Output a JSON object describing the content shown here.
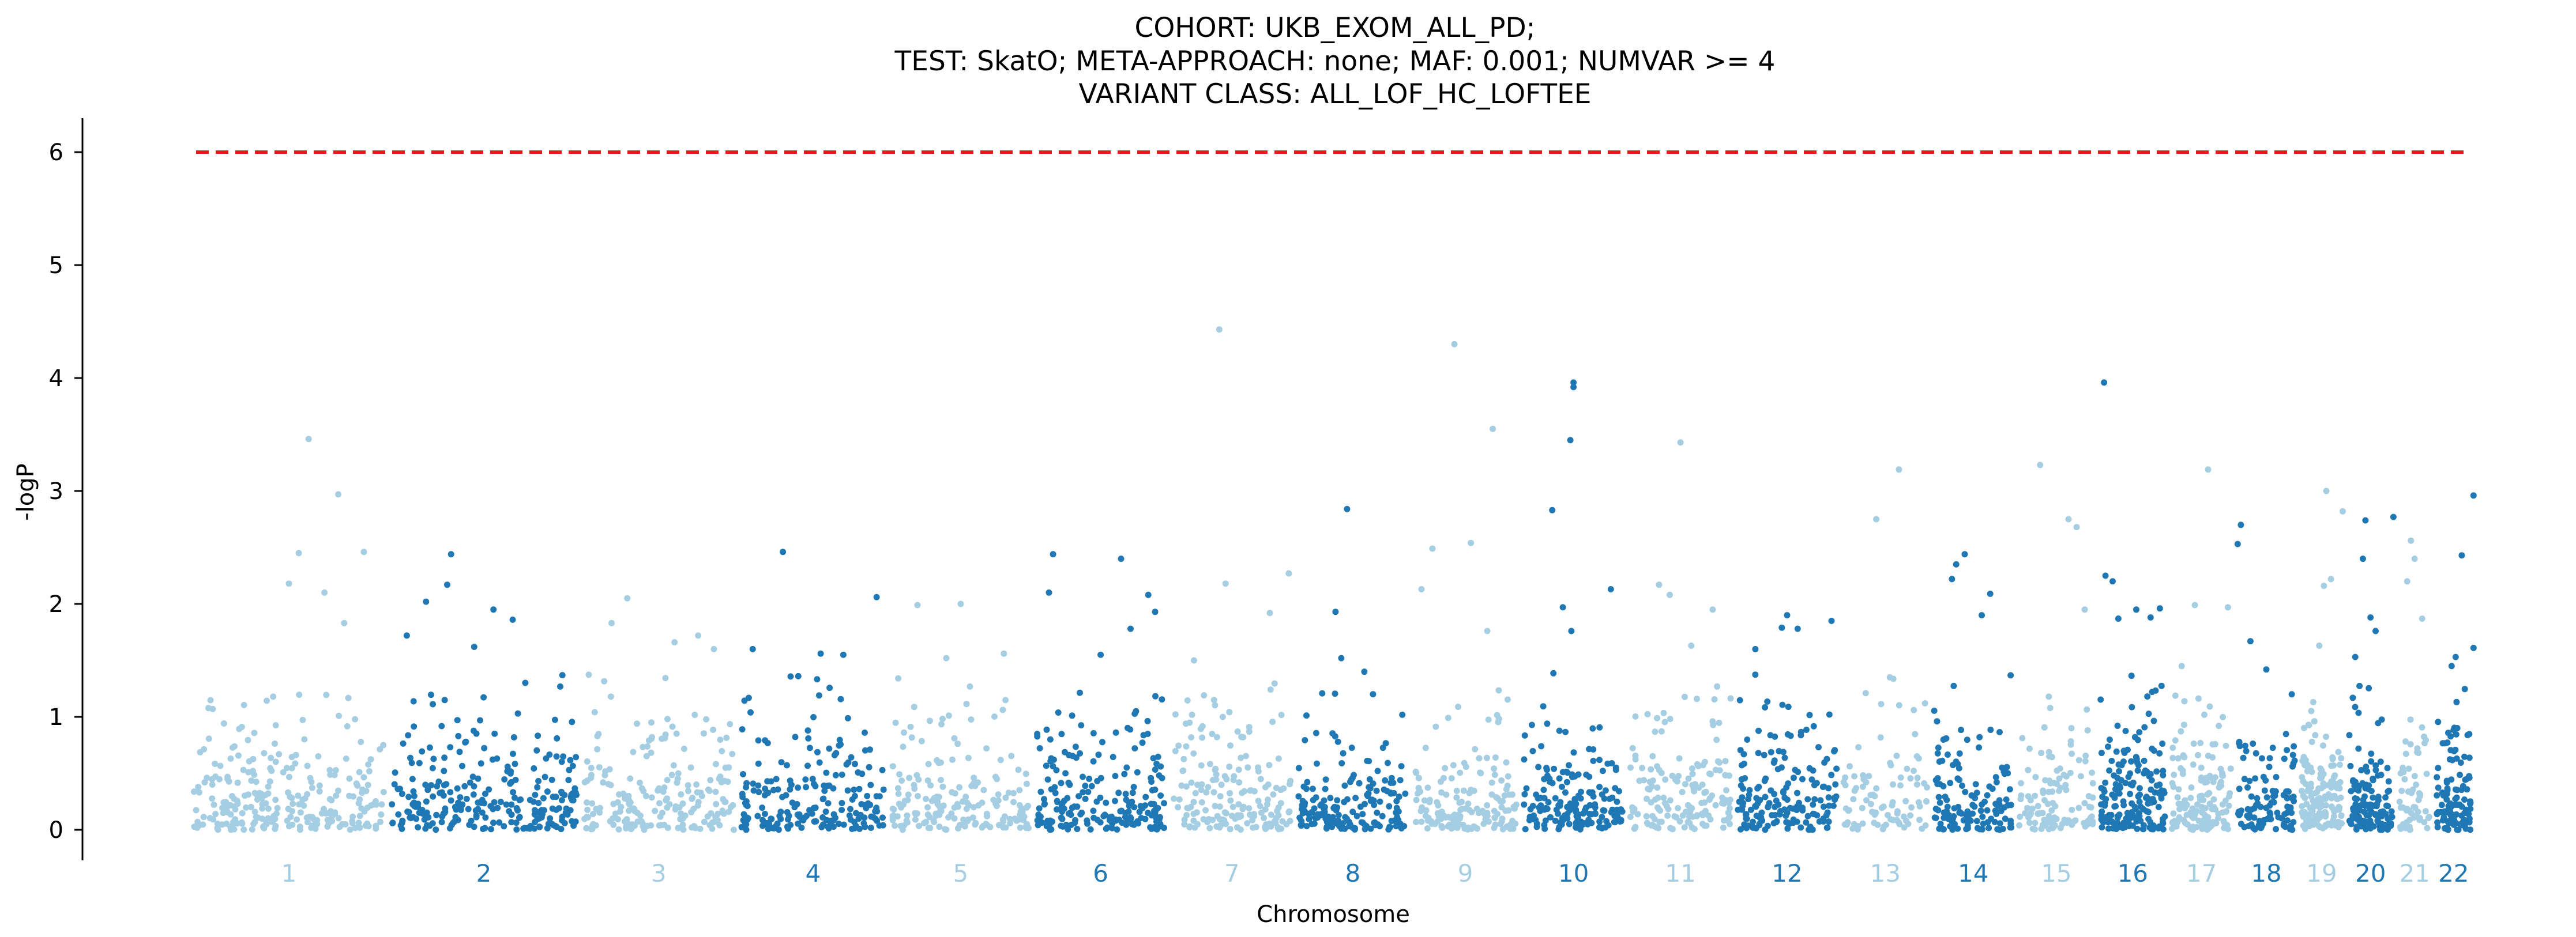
{
  "chart_data": {
    "type": "scatter",
    "title_lines": [
      "COHORT: UKB_EXOM_ALL_PD;",
      "TEST: SkatO; META-APPROACH: none; MAF: 0.001; NUMVAR >= 4",
      "VARIANT CLASS: ALL_LOF_HC_LOFTEE"
    ],
    "xlabel": "Chromosome",
    "ylabel": "-logP",
    "ylim": [
      -0.3,
      6.3
    ],
    "yticks": [
      0,
      1,
      2,
      3,
      4,
      5,
      6
    ],
    "threshold": 6,
    "grid": false,
    "legend": "none",
    "colors": {
      "light": "#a6cee3",
      "dark": "#1f78b4",
      "threshold": "#e31a1c"
    },
    "chromosomes": [
      {
        "label": "1",
        "length": 248,
        "points": 260,
        "max_points": [
          [
            0.6,
            3.46
          ],
          [
            0.75,
            2.97
          ],
          [
            0.55,
            2.45
          ],
          [
            0.5,
            2.18
          ],
          [
            0.88,
            2.46
          ],
          [
            0.68,
            2.1
          ],
          [
            0.78,
            1.83
          ]
        ]
      },
      {
        "label": "2",
        "length": 242,
        "points": 260,
        "max_points": [
          [
            0.33,
            2.44
          ],
          [
            0.31,
            2.17
          ],
          [
            0.55,
            1.95
          ],
          [
            0.65,
            1.86
          ],
          [
            0.1,
            1.72
          ],
          [
            0.2,
            2.02
          ],
          [
            0.45,
            1.62
          ]
        ]
      },
      {
        "label": "3",
        "length": 198,
        "points": 200,
        "max_points": [
          [
            0.3,
            2.05
          ],
          [
            0.2,
            1.83
          ],
          [
            0.6,
            1.66
          ],
          [
            0.75,
            1.72
          ],
          [
            0.85,
            1.6
          ]
        ]
      },
      {
        "label": "4",
        "length": 190,
        "points": 200,
        "max_points": [
          [
            0.3,
            2.46
          ],
          [
            0.92,
            2.06
          ],
          [
            0.1,
            1.6
          ],
          [
            0.55,
            1.56
          ],
          [
            0.7,
            1.55
          ]
        ]
      },
      {
        "label": "5",
        "length": 181,
        "points": 180,
        "max_points": [
          [
            0.2,
            1.99
          ],
          [
            0.5,
            2.0
          ],
          [
            0.4,
            1.52
          ],
          [
            0.8,
            1.56
          ]
        ]
      },
      {
        "label": "6",
        "length": 171,
        "points": 200,
        "max_points": [
          [
            0.15,
            2.44
          ],
          [
            0.12,
            2.1
          ],
          [
            0.65,
            2.4
          ],
          [
            0.85,
            2.08
          ],
          [
            0.9,
            1.93
          ],
          [
            0.72,
            1.78
          ],
          [
            0.5,
            1.55
          ]
        ]
      },
      {
        "label": "7",
        "length": 159,
        "points": 170,
        "max_points": [
          [
            0.4,
            4.43
          ],
          [
            0.45,
            2.18
          ],
          [
            0.8,
            1.92
          ],
          [
            0.95,
            2.27
          ],
          [
            0.2,
            1.5
          ]
        ]
      },
      {
        "label": "8",
        "length": 145,
        "points": 170,
        "max_points": [
          [
            0.45,
            2.84
          ],
          [
            0.35,
            1.93
          ],
          [
            0.4,
            1.52
          ],
          [
            0.6,
            1.4
          ]
        ]
      },
      {
        "label": "9",
        "length": 138,
        "points": 150,
        "max_points": [
          [
            0.4,
            4.3
          ],
          [
            0.75,
            3.55
          ],
          [
            0.1,
            2.13
          ],
          [
            0.2,
            2.49
          ],
          [
            0.55,
            2.54
          ],
          [
            0.7,
            1.76
          ]
        ]
      },
      {
        "label": "10",
        "length": 134,
        "points": 170,
        "max_points": [
          [
            0.5,
            3.96
          ],
          [
            0.5,
            3.92
          ],
          [
            0.47,
            3.45
          ],
          [
            0.3,
            2.83
          ],
          [
            0.85,
            2.13
          ],
          [
            0.4,
            1.97
          ],
          [
            0.48,
            1.76
          ]
        ]
      },
      {
        "label": "11",
        "length": 135,
        "points": 150,
        "max_points": [
          [
            0.5,
            3.43
          ],
          [
            0.3,
            2.17
          ],
          [
            0.4,
            2.08
          ],
          [
            0.8,
            1.95
          ],
          [
            0.6,
            1.63
          ]
        ]
      },
      {
        "label": "12",
        "length": 133,
        "points": 170,
        "max_points": [
          [
            0.5,
            1.9
          ],
          [
            0.6,
            1.78
          ],
          [
            0.92,
            1.85
          ],
          [
            0.2,
            1.6
          ],
          [
            0.45,
            1.79
          ]
        ]
      },
      {
        "label": "13",
        "length": 114,
        "points": 90,
        "max_points": [
          [
            0.4,
            2.75
          ],
          [
            0.65,
            3.19
          ],
          [
            0.55,
            1.35
          ]
        ]
      },
      {
        "label": "14",
        "length": 107,
        "points": 130,
        "max_points": [
          [
            0.4,
            2.44
          ],
          [
            0.3,
            2.35
          ],
          [
            0.25,
            2.22
          ],
          [
            0.7,
            2.09
          ],
          [
            0.6,
            1.9
          ]
        ]
      },
      {
        "label": "15",
        "length": 102,
        "points": 110,
        "max_points": [
          [
            0.3,
            3.23
          ],
          [
            0.65,
            2.75
          ],
          [
            0.75,
            2.68
          ],
          [
            0.85,
            1.95
          ]
        ]
      },
      {
        "label": "16",
        "length": 90,
        "points": 180,
        "max_points": [
          [
            0.1,
            3.96
          ],
          [
            0.12,
            2.25
          ],
          [
            0.22,
            2.2
          ],
          [
            0.3,
            1.87
          ],
          [
            0.55,
            1.95
          ],
          [
            0.75,
            1.88
          ],
          [
            0.88,
            1.96
          ]
        ]
      },
      {
        "label": "17",
        "length": 83,
        "points": 140,
        "max_points": [
          [
            0.6,
            3.19
          ],
          [
            0.4,
            1.99
          ],
          [
            0.9,
            1.97
          ],
          [
            0.2,
            1.45
          ]
        ]
      },
      {
        "label": "18",
        "length": 80,
        "points": 100,
        "max_points": [
          [
            0.1,
            2.7
          ],
          [
            0.05,
            2.53
          ],
          [
            0.25,
            1.67
          ],
          [
            0.5,
            1.42
          ],
          [
            0.9,
            1.2
          ]
        ]
      },
      {
        "label": "19",
        "length": 59,
        "points": 150,
        "max_points": [
          [
            0.6,
            3.0
          ],
          [
            0.7,
            2.22
          ],
          [
            0.95,
            2.82
          ],
          [
            0.45,
            1.63
          ],
          [
            0.55,
            2.16
          ]
        ]
      },
      {
        "label": "20",
        "length": 64,
        "points": 130,
        "max_points": [
          [
            0.4,
            2.74
          ],
          [
            0.95,
            2.77
          ],
          [
            0.35,
            2.4
          ],
          [
            0.5,
            1.88
          ],
          [
            0.6,
            1.76
          ],
          [
            0.2,
            1.53
          ]
        ]
      },
      {
        "label": "21",
        "length": 47,
        "points": 60,
        "max_points": [
          [
            0.4,
            2.56
          ],
          [
            0.3,
            2.2
          ],
          [
            0.5,
            2.4
          ],
          [
            0.7,
            1.87
          ]
        ]
      },
      {
        "label": "22",
        "length": 51,
        "points": 110,
        "max_points": [
          [
            0.99,
            2.96
          ],
          [
            0.7,
            2.43
          ],
          [
            0.99,
            1.61
          ],
          [
            0.45,
            1.45
          ],
          [
            0.55,
            1.53
          ]
        ]
      }
    ]
  }
}
